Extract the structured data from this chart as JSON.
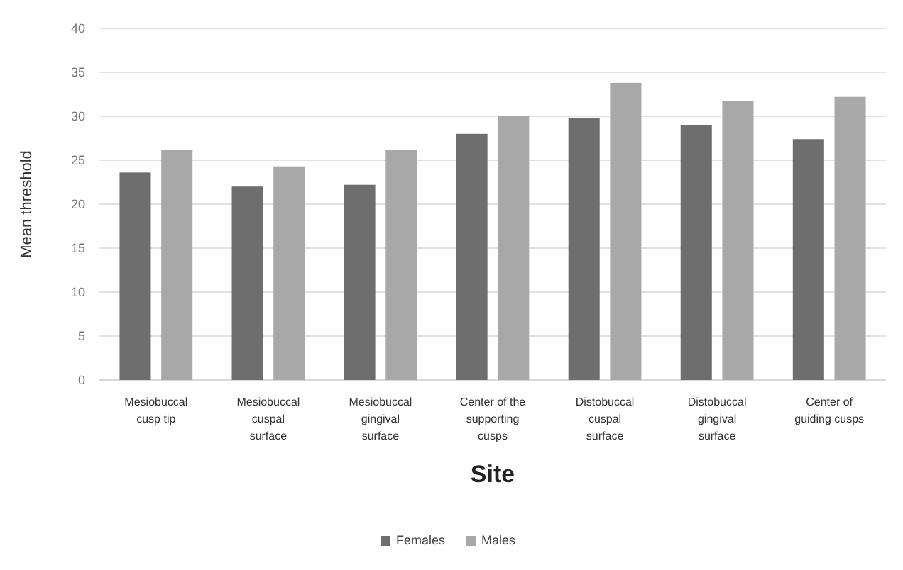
{
  "chart_data": {
    "type": "bar",
    "xlabel": "Site",
    "ylabel": "Mean threshold",
    "categories": [
      "Mesiobuccal cusp tip",
      "Mesiobuccal cuspal surface",
      "Mesiobuccal gingival surface",
      "Center of the supporting cusps",
      "Distobuccal cuspal surface",
      "Distobuccal gingival surface",
      "Center of guiding cusps"
    ],
    "series": [
      {
        "name": "Females",
        "color": "#6e6e6e",
        "values": [
          23.6,
          22.0,
          22.2,
          28.0,
          29.8,
          29.0,
          27.4
        ]
      },
      {
        "name": "Males",
        "color": "#a8a8a8",
        "values": [
          26.2,
          24.3,
          26.2,
          30.0,
          33.8,
          31.7,
          32.2
        ]
      }
    ],
    "ylim": [
      0,
      40
    ],
    "yticks": [
      0,
      5,
      10,
      15,
      20,
      25,
      30,
      35,
      40
    ],
    "grid": "y",
    "legend": "bottom"
  }
}
